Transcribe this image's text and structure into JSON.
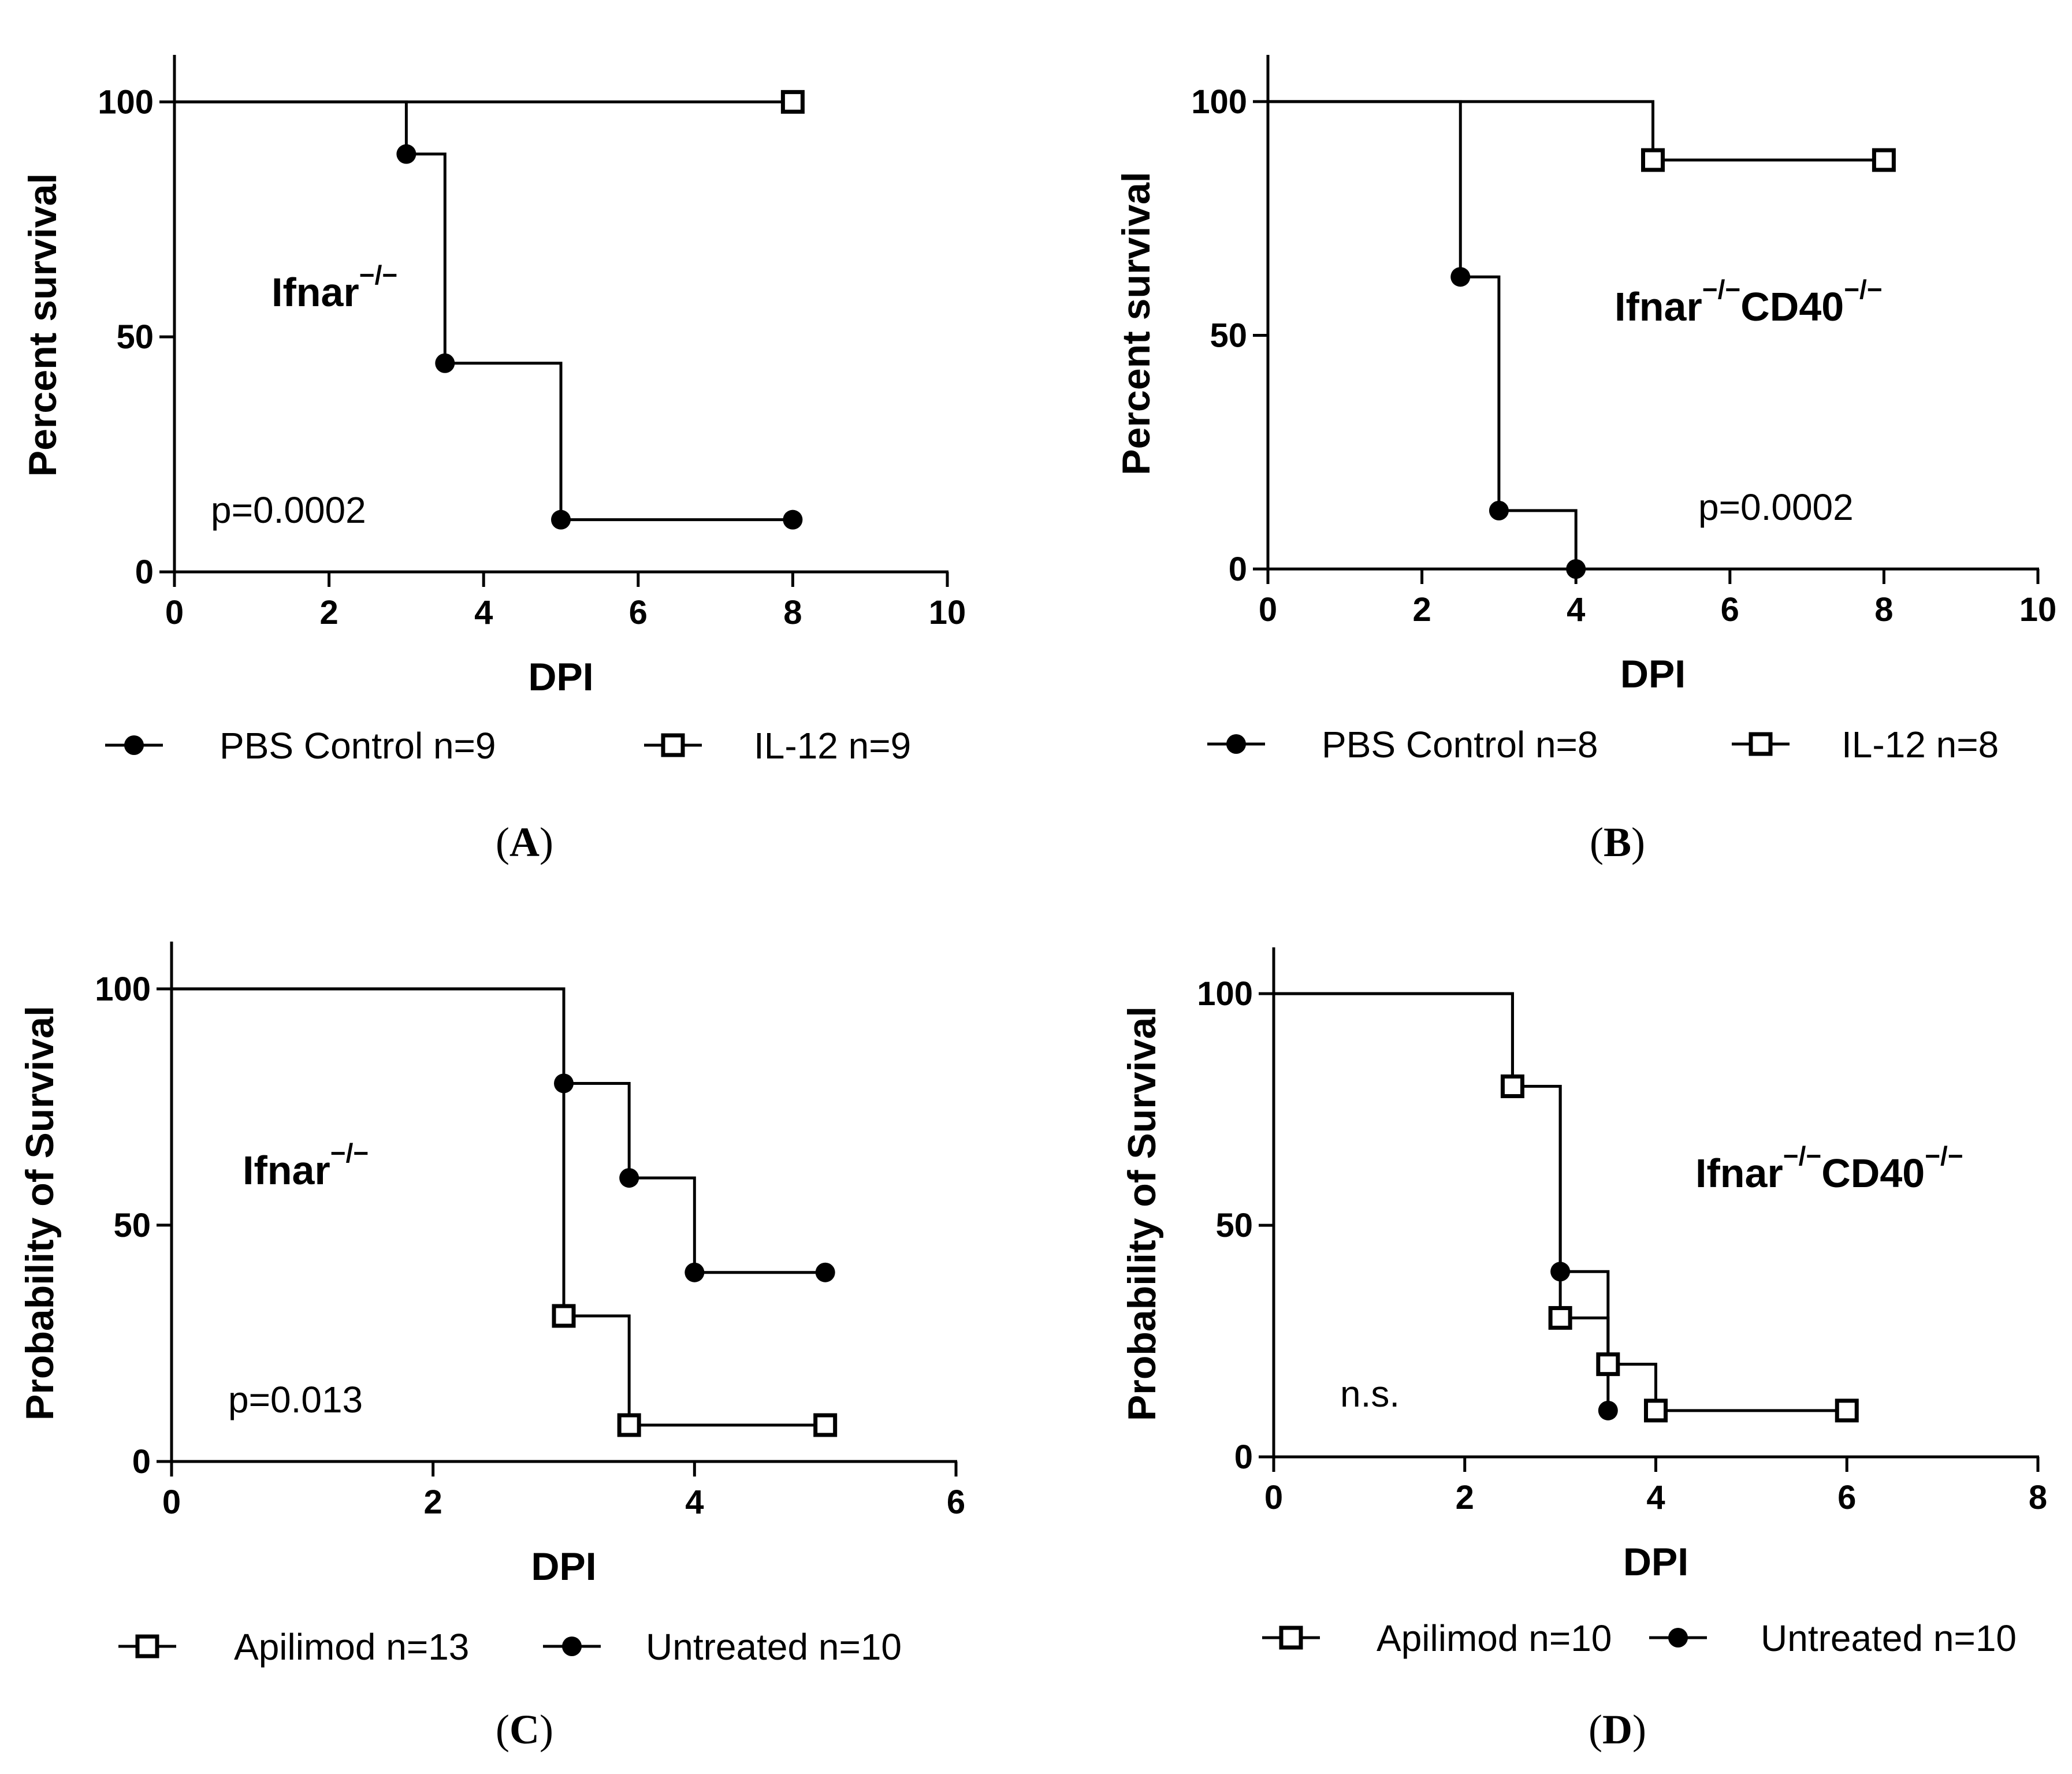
{
  "figure_panels": [
    "A",
    "B",
    "C",
    "D"
  ],
  "chart_data": [
    {
      "type": "line",
      "subtype": "kaplan-meier-survival",
      "panel": "A",
      "title": "",
      "annotation": "Ifnar",
      "annotation_sup": "−/−",
      "annotation2": "",
      "annotation2_sup": "",
      "pvalue": "p=0.0002",
      "xlabel": "DPI",
      "ylabel": "Percent survival",
      "xlim": [
        0,
        10
      ],
      "ylim": [
        0,
        110
      ],
      "xticks": [
        0,
        2,
        4,
        6,
        8,
        10
      ],
      "xtick_labels": [
        "0",
        "2",
        "4",
        "6",
        "8",
        "10"
      ],
      "yticks": [
        0,
        50,
        100
      ],
      "ytick_labels": [
        "0",
        "50",
        "100"
      ],
      "legend_position": "bottom",
      "series": [
        {
          "name": "PBS Control n=9",
          "marker": "filled-circle",
          "steps": [
            [
              0,
              100
            ],
            [
              3,
              88.9
            ],
            [
              3.5,
              44.4
            ],
            [
              5,
              11.1
            ],
            [
              8,
              11.1
            ]
          ],
          "points": [
            [
              3,
              88.9
            ],
            [
              3.5,
              44.4
            ],
            [
              5,
              11.1
            ],
            [
              8,
              11.1
            ]
          ]
        },
        {
          "name": "IL-12 n=9",
          "marker": "open-square",
          "steps": [
            [
              0,
              100
            ],
            [
              8,
              100
            ]
          ],
          "points": [
            [
              8,
              100
            ]
          ]
        }
      ],
      "legend_order": [
        0,
        1
      ]
    },
    {
      "type": "line",
      "subtype": "kaplan-meier-survival",
      "panel": "B",
      "title": "",
      "annotation": "Ifnar",
      "annotation_sup": "−/−",
      "annotation2": "CD40",
      "annotation2_sup": "−/−",
      "pvalue": "p=0.0002",
      "xlabel": "DPI",
      "ylabel": "Percent survival",
      "xlim": [
        0,
        10
      ],
      "ylim": [
        0,
        110
      ],
      "xticks": [
        0,
        2,
        4,
        6,
        8,
        10
      ],
      "xtick_labels": [
        "0",
        "2",
        "4",
        "6",
        "8",
        "10"
      ],
      "yticks": [
        0,
        50,
        100
      ],
      "ytick_labels": [
        "0",
        "50",
        "100"
      ],
      "legend_position": "bottom",
      "series": [
        {
          "name": "PBS Control n=8",
          "marker": "filled-circle",
          "steps": [
            [
              0,
              100
            ],
            [
              2.5,
              62.5
            ],
            [
              3,
              12.5
            ],
            [
              4,
              0
            ]
          ],
          "points": [
            [
              2.5,
              62.5
            ],
            [
              3,
              12.5
            ],
            [
              4,
              0
            ]
          ]
        },
        {
          "name": "IL-12 n=8",
          "marker": "open-square",
          "steps": [
            [
              0,
              100
            ],
            [
              5,
              87.5
            ],
            [
              8,
              87.5
            ]
          ],
          "points": [
            [
              5,
              87.5
            ],
            [
              8,
              87.5
            ]
          ]
        }
      ],
      "legend_order": [
        0,
        1
      ]
    },
    {
      "type": "line",
      "subtype": "kaplan-meier-survival",
      "panel": "C",
      "title": "",
      "annotation": "Ifnar",
      "annotation_sup": "−/−",
      "annotation2": "",
      "annotation2_sup": "",
      "pvalue": "p=0.013",
      "xlabel": "DPI",
      "ylabel": "Probability of Survival",
      "xlim": [
        0,
        6
      ],
      "ylim": [
        0,
        110
      ],
      "xticks": [
        0,
        2,
        4,
        6
      ],
      "xtick_labels": [
        "0",
        "2",
        "4",
        "6"
      ],
      "yticks": [
        0,
        50,
        100
      ],
      "ytick_labels": [
        "0",
        "50",
        "100"
      ],
      "legend_position": "bottom",
      "series": [
        {
          "name": "Untreated n=10",
          "marker": "filled-circle",
          "steps": [
            [
              0,
              100
            ],
            [
              3,
              80
            ],
            [
              3.5,
              60
            ],
            [
              4,
              40
            ],
            [
              5,
              40
            ]
          ],
          "points": [
            [
              3,
              80
            ],
            [
              3.5,
              60
            ],
            [
              4,
              40
            ],
            [
              5,
              40
            ]
          ]
        },
        {
          "name": "Apilimod n=13",
          "marker": "open-square",
          "steps": [
            [
              0,
              100
            ],
            [
              3,
              30.8
            ],
            [
              3.5,
              7.7
            ],
            [
              5,
              7.7
            ]
          ],
          "points": [
            [
              3,
              30.8
            ],
            [
              3.5,
              7.7
            ],
            [
              5,
              7.7
            ]
          ]
        }
      ],
      "legend_order": [
        1,
        0
      ]
    },
    {
      "type": "line",
      "subtype": "kaplan-meier-survival",
      "panel": "D",
      "title": "",
      "annotation": "Ifnar",
      "annotation_sup": "−/−",
      "annotation2": "CD40",
      "annotation2_sup": "−/−",
      "pvalue": "n.s.",
      "xlabel": "DPI",
      "ylabel": "Probability of Survival",
      "xlim": [
        0,
        8
      ],
      "ylim": [
        0,
        110
      ],
      "xticks": [
        0,
        2,
        4,
        6,
        8
      ],
      "xtick_labels": [
        "0",
        "2",
        "4",
        "6",
        "8"
      ],
      "yticks": [
        0,
        50,
        100
      ],
      "ytick_labels": [
        "0",
        "50",
        "100"
      ],
      "legend_position": "bottom",
      "series": [
        {
          "name": "Untreated n=10",
          "marker": "filled-circle",
          "steps": [
            [
              0,
              100
            ],
            [
              2.5,
              80
            ],
            [
              3,
              40
            ],
            [
              3.5,
              10
            ]
          ],
          "points": [
            [
              3,
              40
            ],
            [
              3.5,
              10
            ]
          ]
        },
        {
          "name": "Apilimod n=10",
          "marker": "open-square",
          "steps": [
            [
              0,
              100
            ],
            [
              2.5,
              80
            ],
            [
              3,
              30
            ],
            [
              3.5,
              20
            ],
            [
              4,
              10
            ],
            [
              6,
              10
            ]
          ],
          "points": [
            [
              2.5,
              80
            ],
            [
              3,
              30
            ],
            [
              3.5,
              20
            ],
            [
              4,
              10
            ],
            [
              6,
              10
            ]
          ]
        }
      ],
      "legend_order": [
        1,
        0
      ]
    }
  ]
}
